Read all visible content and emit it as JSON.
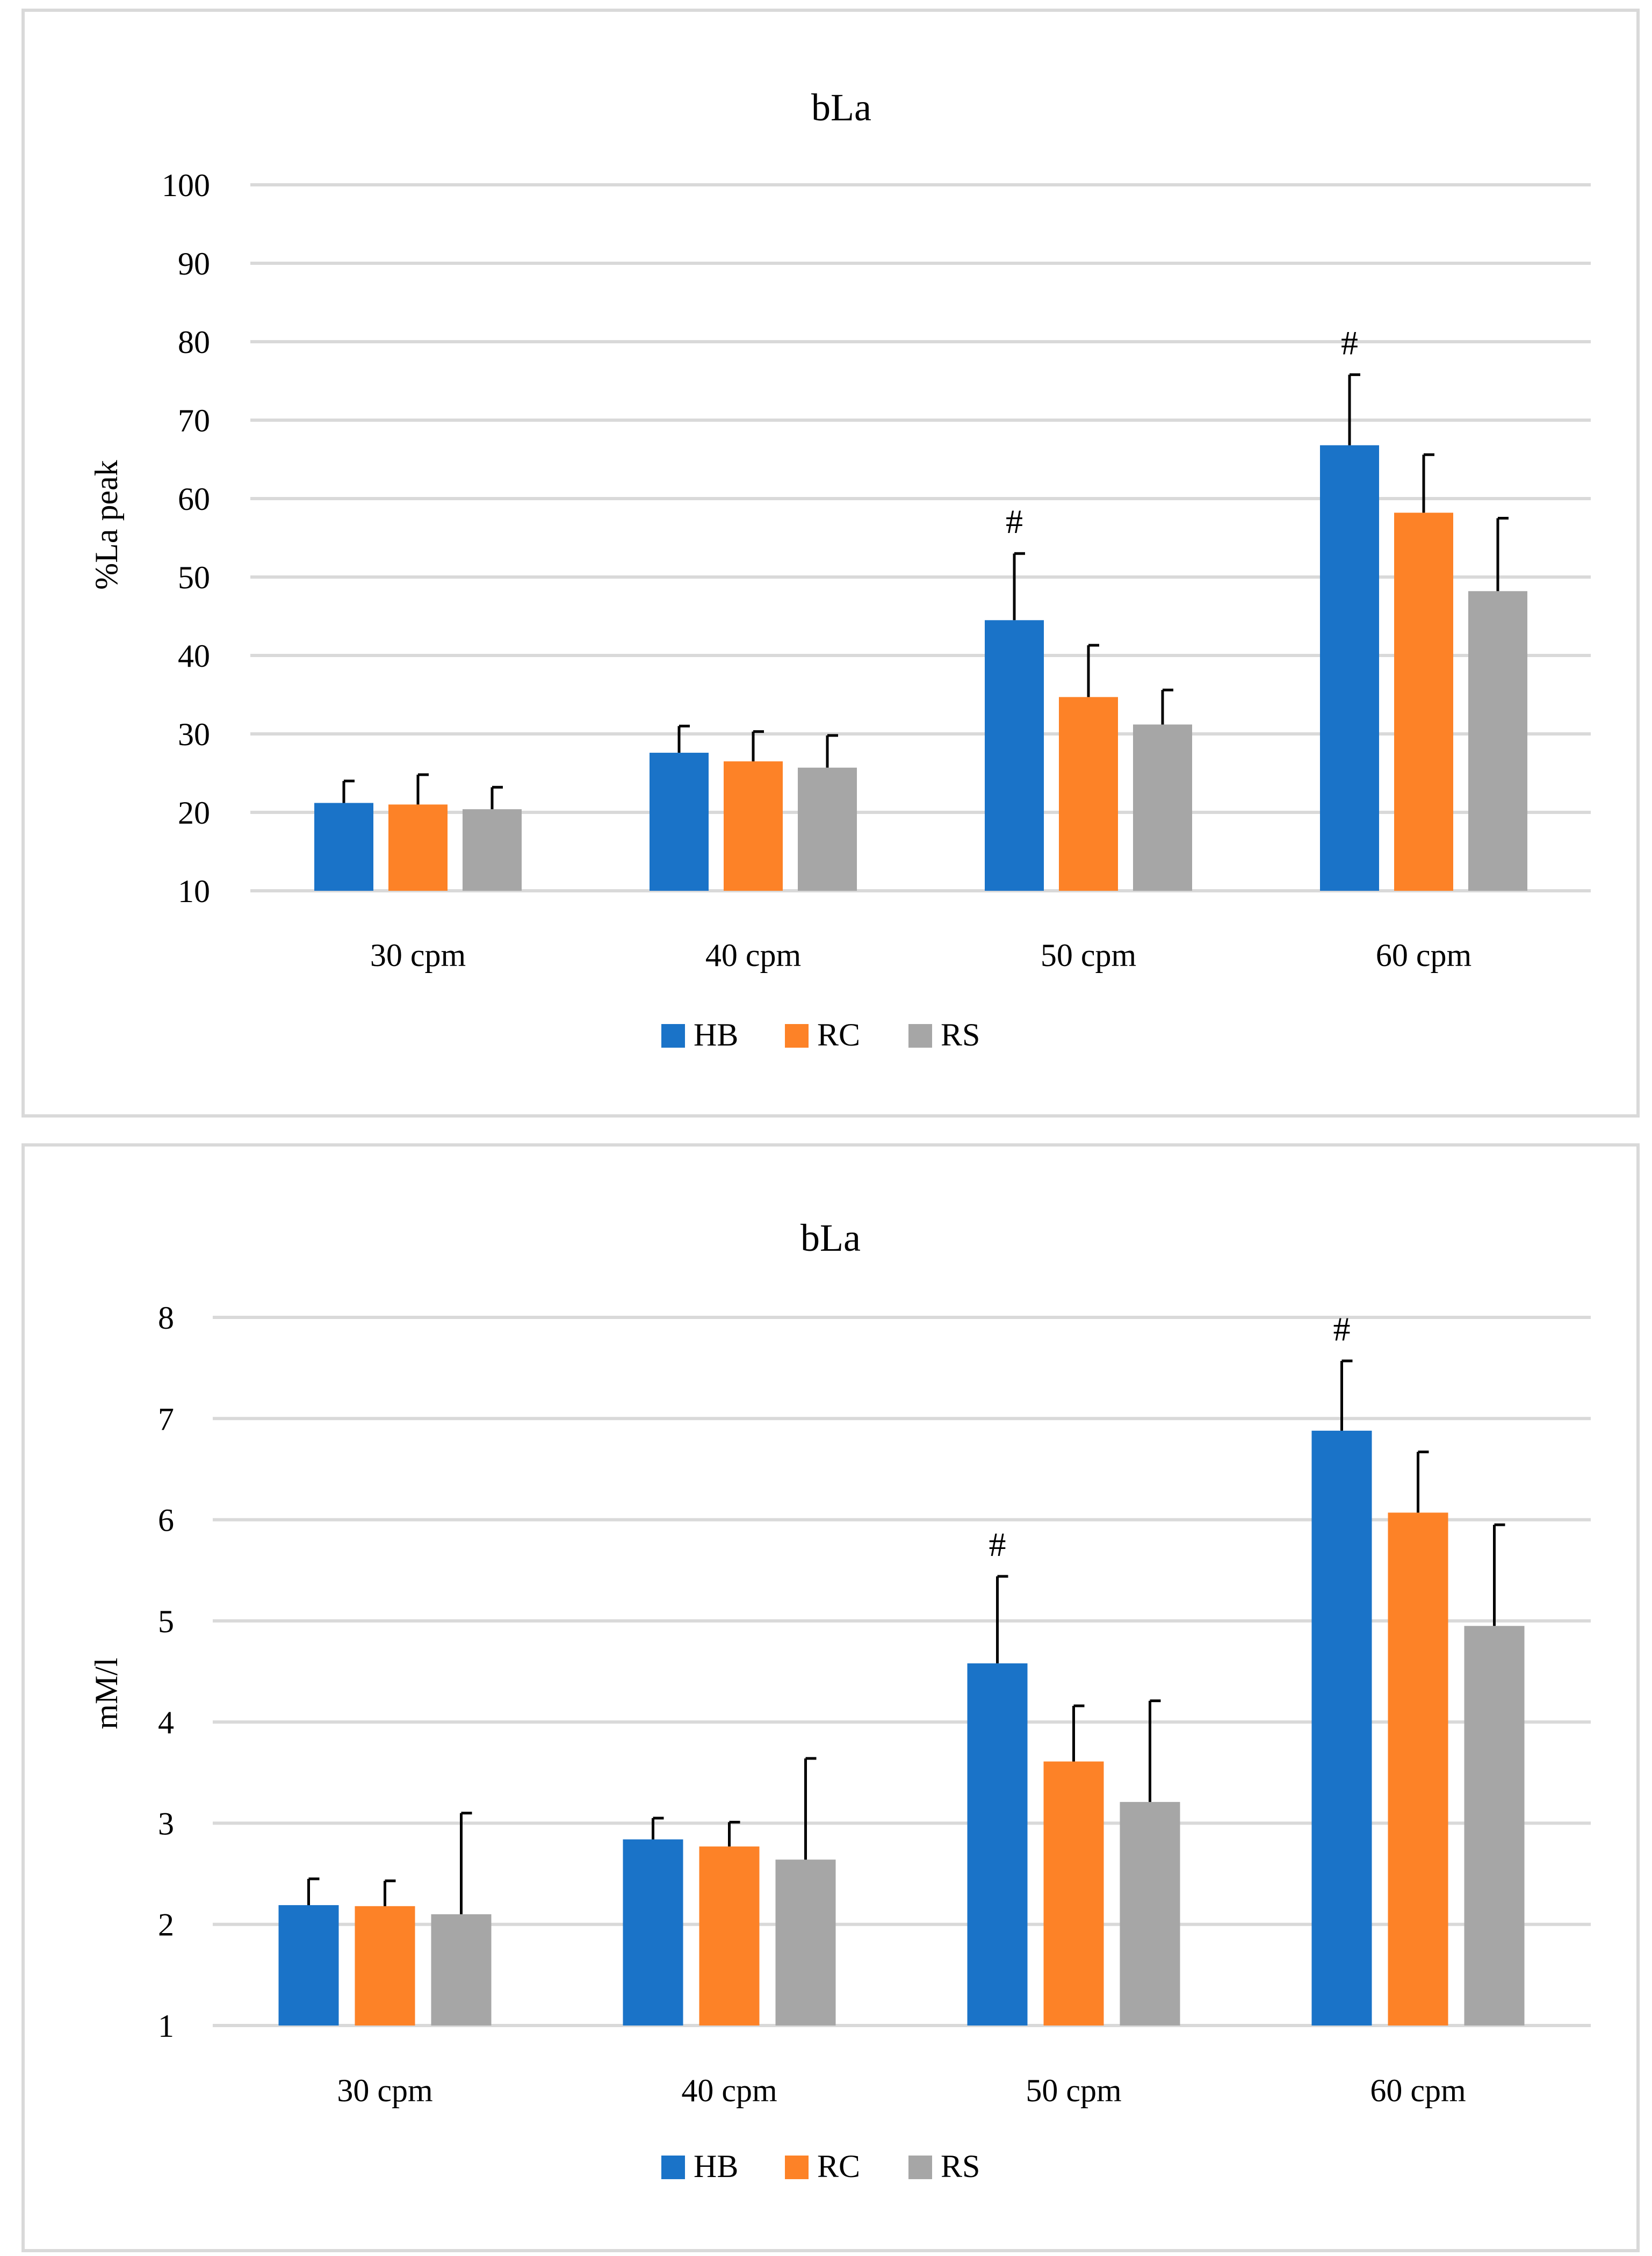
{
  "chart_data": [
    {
      "type": "bar",
      "title": "bLa",
      "ylabel": "%La peak",
      "xlabel": "",
      "ylim": [
        10,
        100
      ],
      "yticks": [
        10,
        20,
        30,
        40,
        50,
        60,
        70,
        80,
        90,
        100
      ],
      "grid": true,
      "legend": "bottom",
      "categories": [
        "30 cpm",
        "40 cpm",
        "50 cpm",
        "60 cpm"
      ],
      "series": [
        {
          "name": "HB",
          "color": "#1a73c8",
          "values": [
            21.2,
            27.6,
            44.5,
            66.8
          ],
          "errors": [
            2.8,
            3.4,
            8.5,
            9.0
          ]
        },
        {
          "name": "RC",
          "color": "#fd8227",
          "values": [
            21.0,
            26.5,
            34.7,
            58.2
          ],
          "errors": [
            3.8,
            3.8,
            6.6,
            7.4
          ]
        },
        {
          "name": "RS",
          "color": "#a6a6a6",
          "values": [
            20.4,
            25.7,
            31.2,
            48.2
          ],
          "errors": [
            2.8,
            4.1,
            4.4,
            9.3
          ]
        }
      ],
      "annotations": [
        {
          "text": "#",
          "category": "50 cpm",
          "series": "HB"
        },
        {
          "text": "#",
          "category": "60 cpm",
          "series": "HB"
        }
      ]
    },
    {
      "type": "bar",
      "title": "bLa",
      "ylabel": "mM/l",
      "xlabel": "",
      "ylim": [
        1,
        8
      ],
      "yticks": [
        1,
        2,
        3,
        4,
        5,
        6,
        7,
        8
      ],
      "grid": true,
      "legend": "bottom",
      "categories": [
        "30 cpm",
        "40 cpm",
        "50 cpm",
        "60 cpm"
      ],
      "series": [
        {
          "name": "HB",
          "color": "#1a73c8",
          "values": [
            2.19,
            2.84,
            4.58,
            6.88
          ],
          "errors": [
            0.26,
            0.21,
            0.86,
            0.69
          ]
        },
        {
          "name": "RC",
          "color": "#fd8227",
          "values": [
            2.18,
            2.77,
            3.61,
            6.07
          ],
          "errors": [
            0.25,
            0.24,
            0.55,
            0.6
          ]
        },
        {
          "name": "RS",
          "color": "#a6a6a6",
          "values": [
            2.1,
            2.64,
            3.21,
            4.95
          ],
          "errors": [
            1.0,
            1.0,
            1.0,
            1.0
          ]
        }
      ],
      "annotations": [
        {
          "text": "#",
          "category": "50 cpm",
          "series": "HB"
        },
        {
          "text": "#",
          "category": "60 cpm",
          "series": "HB"
        }
      ]
    }
  ]
}
